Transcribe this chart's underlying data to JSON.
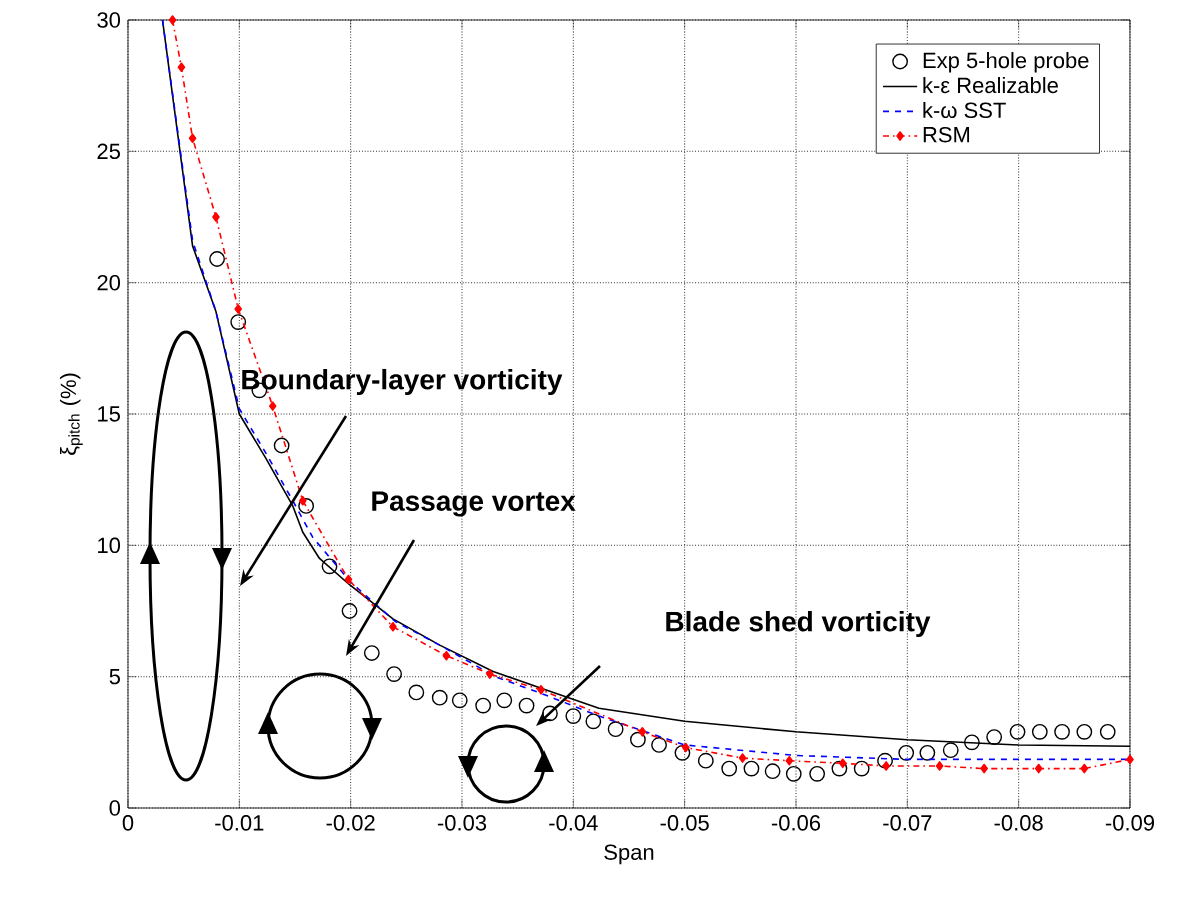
{
  "chart_data": {
    "type": "line",
    "xlabel": "Span",
    "ylabel": "ξ$_{pitch}$ (%)",
    "xlim": [
      0,
      -0.09
    ],
    "ylim": [
      0,
      30
    ],
    "xticks": [
      0,
      -0.01,
      -0.02,
      -0.03,
      -0.04,
      -0.05,
      -0.06,
      -0.07,
      -0.08,
      -0.09
    ],
    "yticks": [
      0,
      5,
      10,
      15,
      20,
      25,
      30
    ],
    "grid": true,
    "legend": "top right",
    "series": [
      {
        "name": "Exp 5-hole probe",
        "type": "scatter",
        "marker": "circle",
        "color": "#000000",
        "x": [
          -0.008,
          -0.0099,
          -0.0118,
          -0.0138,
          -0.016,
          -0.0181,
          -0.0199,
          -0.0219,
          -0.0239,
          -0.0259,
          -0.028,
          -0.0298,
          -0.0319,
          -0.0338,
          -0.0358,
          -0.0379,
          -0.04,
          -0.0418,
          -0.0438,
          -0.0458,
          -0.0477,
          -0.0498,
          -0.0519,
          -0.054,
          -0.056,
          -0.0579,
          -0.0598,
          -0.0619,
          -0.0639,
          -0.0659,
          -0.068,
          -0.0699,
          -0.0718,
          -0.0739,
          -0.0758,
          -0.0778,
          -0.0799,
          -0.0819,
          -0.0839,
          -0.0859,
          -0.088
        ],
        "values": [
          20.9,
          18.5,
          15.9,
          13.8,
          11.5,
          9.2,
          7.5,
          5.9,
          5.1,
          4.4,
          4.2,
          4.1,
          3.9,
          4.1,
          3.9,
          3.6,
          3.5,
          3.3,
          3.0,
          2.6,
          2.4,
          2.1,
          1.8,
          1.5,
          1.5,
          1.4,
          1.3,
          1.3,
          1.5,
          1.5,
          1.8,
          2.1,
          2.1,
          2.2,
          2.5,
          2.7,
          2.9,
          2.9,
          2.9,
          2.9,
          2.9
        ]
      },
      {
        "name": "k-ε Realizable",
        "line_style": "solid",
        "color": "#000000",
        "x": [
          -0.0031,
          -0.0058,
          -0.0079,
          -0.01,
          -0.0124,
          -0.0148,
          -0.0157,
          -0.0172,
          -0.0199,
          -0.0238,
          -0.028,
          -0.0328,
          -0.0375,
          -0.0423,
          -0.05,
          -0.06,
          -0.07,
          -0.08,
          -0.09
        ],
        "values": [
          30,
          21.4,
          18.9,
          15.0,
          13.3,
          11.5,
          10.5,
          9.5,
          8.5,
          7.2,
          6.2,
          5.2,
          4.5,
          3.8,
          3.3,
          2.9,
          2.6,
          2.4,
          2.35
        ]
      },
      {
        "name": "k-ω SST",
        "line_style": "dashed",
        "color": "#0000ff",
        "x": [
          -0.0031,
          -0.0058,
          -0.0079,
          -0.01,
          -0.0124,
          -0.0148,
          -0.0166,
          -0.02,
          -0.024,
          -0.028,
          -0.033,
          -0.0375,
          -0.0423,
          -0.05,
          -0.06,
          -0.07,
          -0.08,
          -0.09
        ],
        "values": [
          30,
          21.6,
          18.9,
          15.2,
          13.5,
          11.7,
          10.3,
          8.6,
          7.1,
          6.2,
          5.0,
          4.3,
          3.5,
          2.4,
          2.0,
          1.85,
          1.85,
          1.85
        ]
      },
      {
        "name": "RSM",
        "line_style": "dashdot",
        "marker": "diamond",
        "color": "#ff0000",
        "x": [
          -0.004,
          -0.0048,
          -0.0058,
          -0.0079,
          -0.0099,
          -0.013,
          -0.0157,
          -0.0198,
          -0.0238,
          -0.0286,
          -0.0325,
          -0.0371,
          -0.0462,
          -0.0501,
          -0.0552,
          -0.0594,
          -0.0642,
          -0.0681,
          -0.0729,
          -0.0769,
          -0.0818,
          -0.0859,
          -0.09
        ],
        "values": [
          30,
          28.2,
          25.5,
          22.5,
          19.0,
          15.3,
          11.7,
          8.7,
          6.9,
          5.8,
          5.1,
          4.5,
          2.9,
          2.3,
          1.9,
          1.8,
          1.7,
          1.6,
          1.6,
          1.5,
          1.5,
          1.5,
          1.85
        ]
      }
    ],
    "annotations": [
      "Boundary-layer vorticity",
      "Passage vortex",
      "Blade shed vorticity"
    ]
  }
}
